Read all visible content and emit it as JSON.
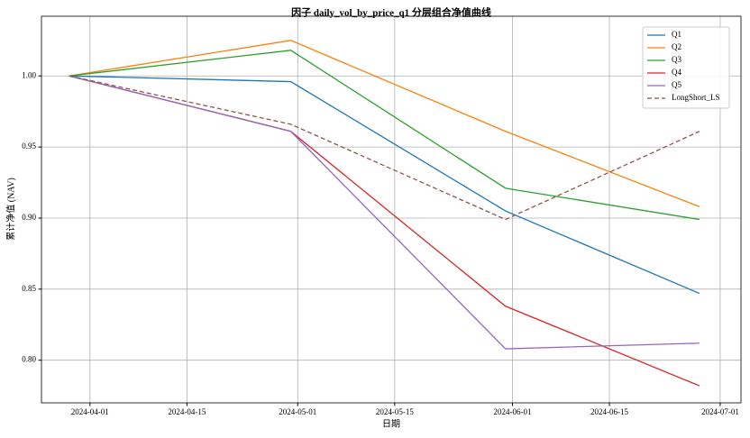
{
  "chart_data": {
    "type": "line",
    "title": "因子 daily_vol_by_price_q1 分层组合净值曲线",
    "xlabel": "日期",
    "ylabel": "累计净值 (NAV)",
    "x": [
      "2024-03-29",
      "2024-04-30",
      "2024-05-31",
      "2024-06-28"
    ],
    "series": [
      {
        "name": "Q1",
        "color": "#1f77b4",
        "linestyle": "solid",
        "values": [
          1.0,
          0.996,
          0.905,
          0.847
        ]
      },
      {
        "name": "Q2",
        "color": "#ff7f0e",
        "linestyle": "solid",
        "values": [
          1.0,
          1.025,
          0.961,
          0.908
        ]
      },
      {
        "name": "Q3",
        "color": "#2ca02c",
        "linestyle": "solid",
        "values": [
          1.0,
          1.018,
          0.921,
          0.899
        ]
      },
      {
        "name": "Q4",
        "color": "#d62728",
        "linestyle": "solid",
        "values": [
          1.0,
          0.961,
          0.838,
          0.782
        ]
      },
      {
        "name": "Q5",
        "color": "#9467bd",
        "linestyle": "solid",
        "values": [
          1.0,
          0.961,
          0.808,
          0.812
        ]
      },
      {
        "name": "LongShort_LS",
        "color": "#8c564b",
        "linestyle": "dashed",
        "values": [
          1.0,
          0.966,
          0.899,
          0.961
        ]
      }
    ],
    "xlim": [
      "2024-03-25",
      "2024-07-04"
    ],
    "xticks": [
      "2024-04-01",
      "2024-04-15",
      "2024-05-01",
      "2024-05-15",
      "2024-06-01",
      "2024-06-15",
      "2024-07-01"
    ],
    "ylim": [
      0.77,
      1.042
    ],
    "yticks": [
      {
        "value": 0.8,
        "label": "0.80"
      },
      {
        "value": 0.85,
        "label": "0.85"
      },
      {
        "value": 0.9,
        "label": "0.90"
      },
      {
        "value": 0.95,
        "label": "0.95"
      },
      {
        "value": 1.0,
        "label": "1.00"
      }
    ],
    "grid": true,
    "legend": "upper right"
  }
}
